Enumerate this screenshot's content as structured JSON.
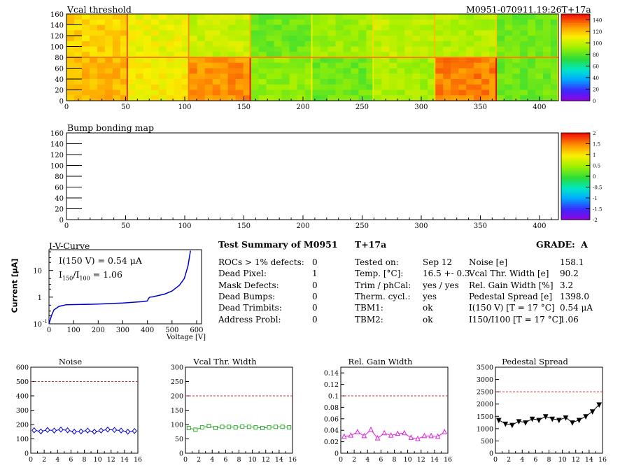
{
  "top_map": {
    "title": "Vcal threshold",
    "run_label": "M0951-070911.19:26T+17a",
    "x_ticks": [
      0,
      50,
      100,
      150,
      200,
      250,
      300,
      350,
      400
    ],
    "y_ticks": [
      0,
      20,
      40,
      60,
      80,
      100,
      120,
      140,
      160
    ],
    "x_range": [
      0,
      416
    ],
    "y_range": [
      0,
      160
    ],
    "palette_ticks": [
      0,
      20,
      40,
      60,
      80,
      100,
      120,
      140
    ],
    "palette_range": [
      0,
      150
    ]
  },
  "bump_map": {
    "title": "Bump bonding map",
    "x_ticks": [
      0,
      50,
      100,
      150,
      200,
      250,
      300,
      350,
      400
    ],
    "y_ticks": [
      0,
      20,
      40,
      60,
      80,
      100,
      120,
      140,
      160
    ],
    "x_range": [
      0,
      416
    ],
    "y_range": [
      0,
      160
    ],
    "palette_ticks": [
      "2",
      "1.5",
      "1",
      "0.5",
      "0",
      "-0.5",
      "-1",
      "-1.5",
      "-2"
    ],
    "palette_range": [
      -2,
      2
    ]
  },
  "iv_curve": {
    "title": "I-V-Curve",
    "ylabel": "Current [μA]",
    "xlabel": "Voltage [V]",
    "ann1": "I(150 V) = 0.54 μA",
    "ann2_pre": "I",
    "ann2_sub1": "150",
    "ann2_mid": "/I",
    "ann2_sub2": "100",
    "ann2_post": " = 1.06",
    "x_ticks": [
      "0",
      "100",
      "200",
      "300",
      "400",
      "500",
      "600"
    ],
    "y_ticks": [
      "10",
      "1",
      "10"
    ],
    "y_tick_exps": [
      "",
      "",
      "-1"
    ],
    "x_range": [
      0,
      620
    ],
    "y_range_log": [
      0.1,
      60
    ]
  },
  "summary": {
    "title": "Test Summary of M0951",
    "tag": "T+17a",
    "grade_label": "GRADE:",
    "grade": "A",
    "col1": [
      {
        "label": "ROCs > 1% defects:",
        "value": "0"
      },
      {
        "label": "Dead Pixel:",
        "value": "1"
      },
      {
        "label": "Mask Defects:",
        "value": "0"
      },
      {
        "label": "Dead Bumps:",
        "value": "0"
      },
      {
        "label": "Dead Trimbits:",
        "value": "0"
      },
      {
        "label": "Address Probl:",
        "value": "0"
      }
    ],
    "col2": [
      {
        "label": "Tested on:",
        "value": "Sep 12"
      },
      {
        "label": "Temp. [°C]:",
        "value": "16.5 +- 0.3"
      },
      {
        "label": "Trim / phCal:",
        "value": "yes / yes"
      },
      {
        "label": "Therm. cycl.:",
        "value": "yes"
      },
      {
        "label": "TBM1:",
        "value": "ok"
      },
      {
        "label": "TBM2:",
        "value": "ok"
      }
    ],
    "col3": [
      {
        "label": "Noise [e]",
        "value": "158.1"
      },
      {
        "label": "Vcal Thr. Width [e]",
        "value": "90.2"
      },
      {
        "label": "Rel. Gain Width [%]",
        "value": "3.2"
      },
      {
        "label": "Pedestal Spread [e]",
        "value": "1398.0"
      },
      {
        "label": "I(150 V) [T = 17 °C]",
        "value": "0.54 μA"
      },
      {
        "label": "I150/I100 [T = 17 °C]",
        "value": "1.06"
      }
    ]
  },
  "chart_data": [
    {
      "type": "line",
      "title": "Noise",
      "x": [
        0,
        1,
        2,
        3,
        4,
        5,
        6,
        7,
        8,
        9,
        10,
        11,
        12,
        13,
        14,
        15
      ],
      "values": [
        160,
        152,
        162,
        158,
        165,
        160,
        150,
        152,
        158,
        150,
        158,
        165,
        162,
        158,
        150,
        155
      ],
      "ylim": [
        0,
        600
      ],
      "y_ticks": [
        0,
        100,
        200,
        300,
        400,
        500,
        600
      ],
      "xlim": [
        0,
        16
      ],
      "x_ticks": [
        0,
        2,
        4,
        6,
        8,
        10,
        12,
        14,
        16
      ],
      "threshold": 500,
      "color": "#0000cc",
      "marker": "diamond"
    },
    {
      "type": "line",
      "title": "Vcal Thr. Width",
      "x": [
        0,
        1,
        2,
        3,
        4,
        5,
        6,
        7,
        8,
        9,
        10,
        11,
        12,
        13,
        14,
        15
      ],
      "values": [
        88,
        82,
        90,
        95,
        88,
        92,
        92,
        90,
        93,
        92,
        90,
        88,
        90,
        92,
        92,
        90
      ],
      "ylim": [
        0,
        300
      ],
      "y_ticks": [
        0,
        50,
        100,
        150,
        200,
        250,
        300
      ],
      "xlim": [
        0,
        16
      ],
      "x_ticks": [
        0,
        2,
        4,
        6,
        8,
        10,
        12,
        14,
        16
      ],
      "threshold": 200,
      "color": "#33aa33",
      "marker": "square"
    },
    {
      "type": "line",
      "title": "Rel. Gain Width",
      "x": [
        0,
        1,
        2,
        3,
        4,
        5,
        6,
        7,
        8,
        9,
        10,
        11,
        12,
        13,
        14,
        15
      ],
      "values": [
        0.029,
        0.031,
        0.037,
        0.03,
        0.041,
        0.026,
        0.035,
        0.031,
        0.034,
        0.035,
        0.027,
        0.025,
        0.03,
        0.03,
        0.029,
        0.037
      ],
      "ylim": [
        0,
        0.15
      ],
      "y_ticks": [
        0,
        0.02,
        0.04,
        0.06,
        0.08,
        0.1,
        0.12,
        0.14
      ],
      "xlim": [
        0,
        16
      ],
      "x_ticks": [
        0,
        2,
        4,
        6,
        8,
        10,
        12,
        14,
        16
      ],
      "threshold": 0.1,
      "color": "#dd22dd",
      "marker": "triangle"
    },
    {
      "type": "line",
      "title": "Pedestal Spread",
      "x": [
        0,
        1,
        2,
        3,
        4,
        5,
        6,
        7,
        8,
        9,
        10,
        11,
        12,
        13,
        14,
        15
      ],
      "values": [
        1350,
        1200,
        1150,
        1300,
        1250,
        1400,
        1350,
        1500,
        1400,
        1350,
        1450,
        1250,
        1350,
        1500,
        1700,
        1980
      ],
      "ylim": [
        0,
        3500
      ],
      "y_ticks": [
        0,
        500,
        1000,
        1500,
        2000,
        2500,
        3000,
        3500
      ],
      "xlim": [
        0,
        16
      ],
      "x_ticks": [
        0,
        2,
        4,
        6,
        8,
        10,
        12,
        14,
        16
      ],
      "threshold": 2500,
      "color": "#000000",
      "marker": "triangle-down"
    }
  ],
  "colors": {
    "threshold_line": "#cc3333",
    "iv_line": "#0000cc"
  }
}
